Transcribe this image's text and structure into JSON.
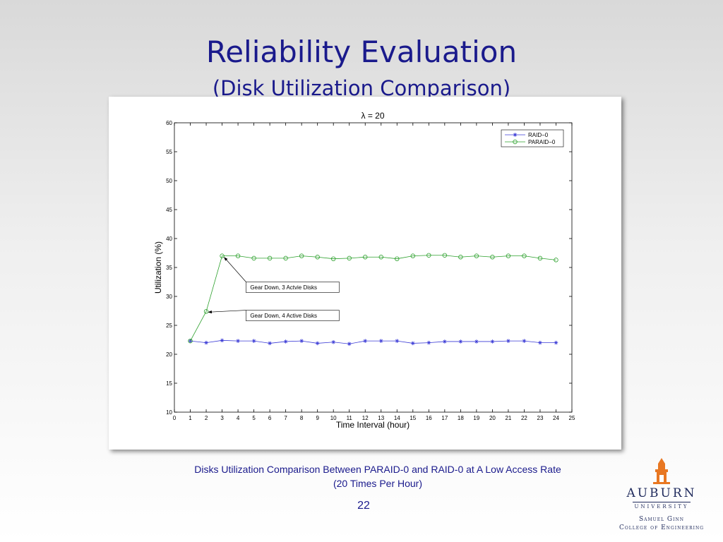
{
  "slide": {
    "title": "Reliability Evaluation",
    "subtitle": "(Disk Utilization Comparison)",
    "caption_line1": "Disks Utilization Comparison Between PARAID-0 and RAID-0 at A Low Access Rate",
    "caption_line2": "(20 Times Per Hour)",
    "page_number": "22"
  },
  "logo": {
    "word": "AUBURN",
    "university": "UNIVERSITY",
    "line1": "Samuel Ginn",
    "line2": "College of Engineering",
    "color": "#e87722"
  },
  "chart_data": {
    "type": "line",
    "title": "λ = 20",
    "xlabel": "Time Interval (hour)",
    "ylabel": "Utilization (%)",
    "xlim": [
      0,
      25
    ],
    "ylim": [
      10,
      60
    ],
    "xticks": [
      0,
      1,
      2,
      3,
      4,
      5,
      6,
      7,
      8,
      9,
      10,
      11,
      12,
      13,
      14,
      15,
      16,
      17,
      18,
      19,
      20,
      21,
      22,
      23,
      24,
      25
    ],
    "yticks": [
      10,
      15,
      20,
      25,
      30,
      35,
      40,
      45,
      50,
      55,
      60
    ],
    "grid": true,
    "legend": "top-right",
    "x": [
      1,
      2,
      3,
      4,
      5,
      6,
      7,
      8,
      9,
      10,
      11,
      12,
      13,
      14,
      15,
      16,
      17,
      18,
      19,
      20,
      21,
      22,
      23,
      24
    ],
    "series": [
      {
        "name": "RAID−0",
        "color": "#3b3bd6",
        "marker": "star",
        "values": [
          22.3,
          22.0,
          22.4,
          22.3,
          22.3,
          21.9,
          22.2,
          22.3,
          21.9,
          22.1,
          21.8,
          22.3,
          22.3,
          22.3,
          21.9,
          22.0,
          22.2,
          22.2,
          22.2,
          22.2,
          22.3,
          22.3,
          22.0,
          22.0
        ]
      },
      {
        "name": "PARAID−0",
        "color": "#2ca02c",
        "marker": "circle",
        "values": [
          22.3,
          27.4,
          37.0,
          37.0,
          36.6,
          36.6,
          36.6,
          37.0,
          36.8,
          36.5,
          36.6,
          36.8,
          36.8,
          36.5,
          37.0,
          37.1,
          37.1,
          36.8,
          37.0,
          36.8,
          37.0,
          37.0,
          36.6,
          36.3
        ]
      }
    ],
    "annotations": [
      {
        "text": "Gear Down, 3 Actvie Disks",
        "target_x": 3,
        "target_y": 37.0,
        "box_x": 4.5,
        "box_y": 31.6
      },
      {
        "text": "Gear Down, 4 Active Disks",
        "target_x": 2,
        "target_y": 27.4,
        "box_x": 4.5,
        "box_y": 26.7
      }
    ]
  }
}
